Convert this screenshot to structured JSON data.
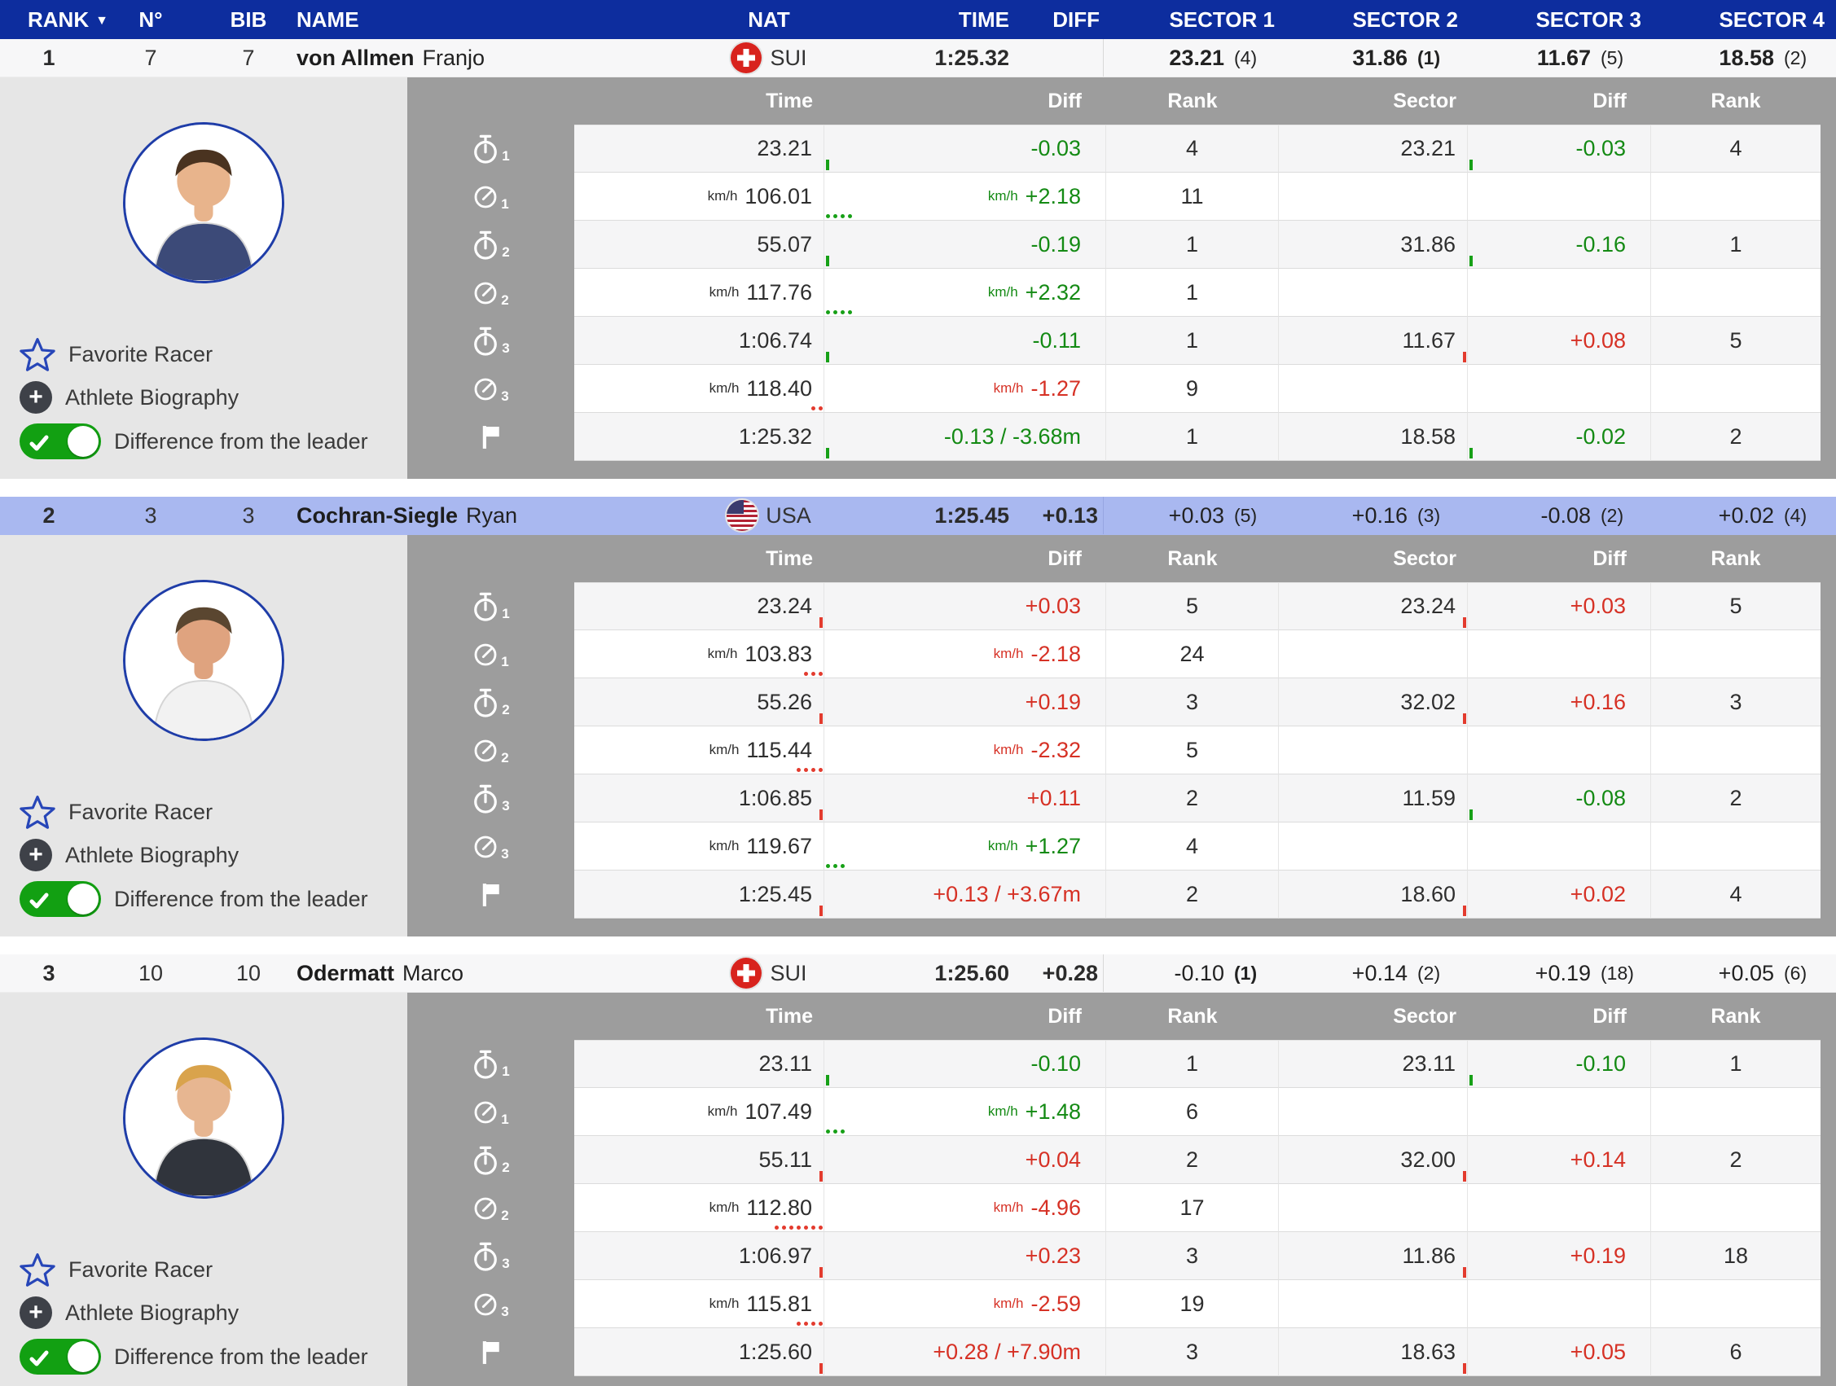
{
  "header": {
    "cols": [
      "RANK",
      "N°",
      "BIB",
      "NAME",
      "NAT",
      "TIME",
      "DIFF",
      "SECTOR 1",
      "SECTOR 2",
      "SECTOR 3",
      "SECTOR 4"
    ],
    "sort_indicator": "▼"
  },
  "labels": {
    "favorite": "Favorite Racer",
    "biography": "Athlete Biography",
    "toggle": "Difference from the leader",
    "kmh": "km/h"
  },
  "detail_headers": [
    "Time",
    "Diff",
    "Rank",
    "Sector",
    "Diff",
    "Rank"
  ],
  "colors": {
    "header_bg": "#0d2d9e",
    "highlight_row": "#a9b8f0",
    "positive_green": "#148a14",
    "negative_red": "#d63125",
    "detail_panel_gray": "#9d9d9d",
    "side_panel_gray": "#e6e6e6"
  },
  "racers": [
    {
      "rank": "1",
      "number": "7",
      "bib": "7",
      "last_name": "von Allmen",
      "first_name": "Franjo",
      "nat": "SUI",
      "flag": "sui",
      "time": "1:25.32",
      "diff": "",
      "highlighted": false,
      "bold_sectors": true,
      "sectors": [
        {
          "value": "23.21",
          "rank": "(4)"
        },
        {
          "value": "31.86",
          "rank": "(1)"
        },
        {
          "value": "11.67",
          "rank": "(5)"
        },
        {
          "value": "18.58",
          "rank": "(2)"
        }
      ],
      "avatar": {
        "skin": "#e8b48c",
        "hair": "#4a3320",
        "shirt": "#3c4a78"
      },
      "rows": [
        {
          "icon": "stopwatch",
          "sub": "1",
          "speed": false,
          "time": "23.21",
          "diff": "-0.03",
          "diff_color": "green",
          "rank": "4",
          "sector": "23.21",
          "sector_diff": "-0.03",
          "sector_diff_color": "green",
          "sector_rank": "4",
          "time_mark": {
            "type": "tick",
            "color": "green"
          },
          "sector_mark": {
            "type": "tick",
            "color": "green"
          }
        },
        {
          "icon": "speedometer",
          "sub": "1",
          "speed": true,
          "time": "106.01",
          "diff": "+2.18",
          "diff_color": "green",
          "rank": "11",
          "sector": "",
          "sector_diff": "",
          "sector_diff_color": "",
          "sector_rank": "",
          "time_mark": {
            "type": "dots",
            "color": "green",
            "count": 4
          },
          "sector_mark": null
        },
        {
          "icon": "stopwatch",
          "sub": "2",
          "speed": false,
          "time": "55.07",
          "diff": "-0.19",
          "diff_color": "green",
          "rank": "1",
          "sector": "31.86",
          "sector_diff": "-0.16",
          "sector_diff_color": "green",
          "sector_rank": "1",
          "time_mark": {
            "type": "tick",
            "color": "green"
          },
          "sector_mark": {
            "type": "tick",
            "color": "green"
          }
        },
        {
          "icon": "speedometer",
          "sub": "2",
          "speed": true,
          "time": "117.76",
          "diff": "+2.32",
          "diff_color": "green",
          "rank": "1",
          "sector": "",
          "sector_diff": "",
          "sector_diff_color": "",
          "sector_rank": "",
          "time_mark": {
            "type": "dots",
            "color": "green",
            "count": 4
          },
          "sector_mark": null
        },
        {
          "icon": "stopwatch",
          "sub": "3",
          "speed": false,
          "time": "1:06.74",
          "diff": "-0.11",
          "diff_color": "green",
          "rank": "1",
          "sector": "11.67",
          "sector_diff": "+0.08",
          "sector_diff_color": "red",
          "sector_rank": "5",
          "time_mark": {
            "type": "tick",
            "color": "green"
          },
          "sector_mark": {
            "type": "tick",
            "color": "red"
          }
        },
        {
          "icon": "speedometer",
          "sub": "3",
          "speed": true,
          "time": "118.40",
          "diff": "-1.27",
          "diff_color": "red",
          "rank": "9",
          "sector": "",
          "sector_diff": "",
          "sector_diff_color": "",
          "sector_rank": "",
          "time_mark": {
            "type": "dots",
            "color": "red",
            "count": 2
          },
          "sector_mark": null
        },
        {
          "icon": "flag",
          "sub": "",
          "speed": false,
          "time": "1:25.32",
          "diff": "-0.13 / -3.68m",
          "diff_color": "green",
          "rank": "1",
          "sector": "18.58",
          "sector_diff": "-0.02",
          "sector_diff_color": "green",
          "sector_rank": "2",
          "time_mark": {
            "type": "tick",
            "color": "green"
          },
          "sector_mark": {
            "type": "tick",
            "color": "green"
          }
        }
      ]
    },
    {
      "rank": "2",
      "number": "3",
      "bib": "3",
      "last_name": "Cochran-Siegle",
      "first_name": "Ryan",
      "nat": "USA",
      "flag": "usa",
      "time": "1:25.45",
      "diff": "+0.13",
      "highlighted": true,
      "bold_sectors": false,
      "sectors": [
        {
          "value": "+0.03",
          "rank": "(5)"
        },
        {
          "value": "+0.16",
          "rank": "(3)"
        },
        {
          "value": "-0.08",
          "rank": "(2)"
        },
        {
          "value": "+0.02",
          "rank": "(4)"
        }
      ],
      "avatar": {
        "skin": "#dfa37f",
        "hair": "#5a4630",
        "shirt": "#f2f2f2"
      },
      "rows": [
        {
          "icon": "stopwatch",
          "sub": "1",
          "speed": false,
          "time": "23.24",
          "diff": "+0.03",
          "diff_color": "red",
          "rank": "5",
          "sector": "23.24",
          "sector_diff": "+0.03",
          "sector_diff_color": "red",
          "sector_rank": "5",
          "time_mark": {
            "type": "tick",
            "color": "red"
          },
          "sector_mark": {
            "type": "tick",
            "color": "red"
          }
        },
        {
          "icon": "speedometer",
          "sub": "1",
          "speed": true,
          "time": "103.83",
          "diff": "-2.18",
          "diff_color": "red",
          "rank": "24",
          "sector": "",
          "sector_diff": "",
          "sector_diff_color": "",
          "sector_rank": "",
          "time_mark": {
            "type": "dots",
            "color": "red",
            "count": 3
          },
          "sector_mark": null
        },
        {
          "icon": "stopwatch",
          "sub": "2",
          "speed": false,
          "time": "55.26",
          "diff": "+0.19",
          "diff_color": "red",
          "rank": "3",
          "sector": "32.02",
          "sector_diff": "+0.16",
          "sector_diff_color": "red",
          "sector_rank": "3",
          "time_mark": {
            "type": "tick",
            "color": "red"
          },
          "sector_mark": {
            "type": "tick",
            "color": "red"
          }
        },
        {
          "icon": "speedometer",
          "sub": "2",
          "speed": true,
          "time": "115.44",
          "diff": "-2.32",
          "diff_color": "red",
          "rank": "5",
          "sector": "",
          "sector_diff": "",
          "sector_diff_color": "",
          "sector_rank": "",
          "time_mark": {
            "type": "dots",
            "color": "red",
            "count": 4
          },
          "sector_mark": null
        },
        {
          "icon": "stopwatch",
          "sub": "3",
          "speed": false,
          "time": "1:06.85",
          "diff": "+0.11",
          "diff_color": "red",
          "rank": "2",
          "sector": "11.59",
          "sector_diff": "-0.08",
          "sector_diff_color": "green",
          "sector_rank": "2",
          "time_mark": {
            "type": "tick",
            "color": "red"
          },
          "sector_mark": {
            "type": "tick",
            "color": "green"
          }
        },
        {
          "icon": "speedometer",
          "sub": "3",
          "speed": true,
          "time": "119.67",
          "diff": "+1.27",
          "diff_color": "green",
          "rank": "4",
          "sector": "",
          "sector_diff": "",
          "sector_diff_color": "",
          "sector_rank": "",
          "time_mark": {
            "type": "dots",
            "color": "green",
            "count": 3
          },
          "sector_mark": null
        },
        {
          "icon": "flag",
          "sub": "",
          "speed": false,
          "time": "1:25.45",
          "diff": "+0.13 / +3.67m",
          "diff_color": "red",
          "rank": "2",
          "sector": "18.60",
          "sector_diff": "+0.02",
          "sector_diff_color": "red",
          "sector_rank": "4",
          "time_mark": {
            "type": "tick",
            "color": "red"
          },
          "sector_mark": {
            "type": "tick",
            "color": "red"
          }
        }
      ]
    },
    {
      "rank": "3",
      "number": "10",
      "bib": "10",
      "last_name": "Odermatt",
      "first_name": "Marco",
      "nat": "SUI",
      "flag": "sui",
      "time": "1:25.60",
      "diff": "+0.28",
      "highlighted": false,
      "bold_sectors": false,
      "sectors": [
        {
          "value": "-0.10",
          "rank": "(1)"
        },
        {
          "value": "+0.14",
          "rank": "(2)"
        },
        {
          "value": "+0.19",
          "rank": "(18)"
        },
        {
          "value": "+0.05",
          "rank": "(6)"
        }
      ],
      "avatar": {
        "skin": "#e7b691",
        "hair": "#d9a34c",
        "shirt": "#30343c"
      },
      "rows": [
        {
          "icon": "stopwatch",
          "sub": "1",
          "speed": false,
          "time": "23.11",
          "diff": "-0.10",
          "diff_color": "green",
          "rank": "1",
          "sector": "23.11",
          "sector_diff": "-0.10",
          "sector_diff_color": "green",
          "sector_rank": "1",
          "time_mark": {
            "type": "tick",
            "color": "green"
          },
          "sector_mark": {
            "type": "tick",
            "color": "green"
          }
        },
        {
          "icon": "speedometer",
          "sub": "1",
          "speed": true,
          "time": "107.49",
          "diff": "+1.48",
          "diff_color": "green",
          "rank": "6",
          "sector": "",
          "sector_diff": "",
          "sector_diff_color": "",
          "sector_rank": "",
          "time_mark": {
            "type": "dots",
            "color": "green",
            "count": 3
          },
          "sector_mark": null
        },
        {
          "icon": "stopwatch",
          "sub": "2",
          "speed": false,
          "time": "55.11",
          "diff": "+0.04",
          "diff_color": "red",
          "rank": "2",
          "sector": "32.00",
          "sector_diff": "+0.14",
          "sector_diff_color": "red",
          "sector_rank": "2",
          "time_mark": {
            "type": "tick",
            "color": "red"
          },
          "sector_mark": {
            "type": "tick",
            "color": "red"
          }
        },
        {
          "icon": "speedometer",
          "sub": "2",
          "speed": true,
          "time": "112.80",
          "diff": "-4.96",
          "diff_color": "red",
          "rank": "17",
          "sector": "",
          "sector_diff": "",
          "sector_diff_color": "",
          "sector_rank": "",
          "time_mark": {
            "type": "dots",
            "color": "red",
            "count": 7
          },
          "sector_mark": null
        },
        {
          "icon": "stopwatch",
          "sub": "3",
          "speed": false,
          "time": "1:06.97",
          "diff": "+0.23",
          "diff_color": "red",
          "rank": "3",
          "sector": "11.86",
          "sector_diff": "+0.19",
          "sector_diff_color": "red",
          "sector_rank": "18",
          "time_mark": {
            "type": "tick",
            "color": "red"
          },
          "sector_mark": {
            "type": "tick",
            "color": "red"
          }
        },
        {
          "icon": "speedometer",
          "sub": "3",
          "speed": true,
          "time": "115.81",
          "diff": "-2.59",
          "diff_color": "red",
          "rank": "19",
          "sector": "",
          "sector_diff": "",
          "sector_diff_color": "",
          "sector_rank": "",
          "time_mark": {
            "type": "dots",
            "color": "red",
            "count": 4
          },
          "sector_mark": null
        },
        {
          "icon": "flag",
          "sub": "",
          "speed": false,
          "time": "1:25.60",
          "diff": "+0.28 / +7.90m",
          "diff_color": "red",
          "rank": "3",
          "sector": "18.63",
          "sector_diff": "+0.05",
          "sector_diff_color": "red",
          "sector_rank": "6",
          "time_mark": {
            "type": "tick",
            "color": "red"
          },
          "sector_mark": {
            "type": "tick",
            "color": "red"
          }
        }
      ]
    }
  ]
}
